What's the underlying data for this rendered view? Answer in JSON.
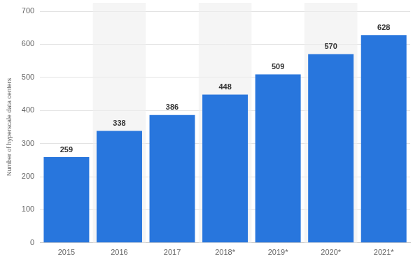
{
  "chart_data": {
    "type": "bar",
    "ylabel": "Number of hyperscale data centers",
    "categories": [
      "2015",
      "2016",
      "2017",
      "2018*",
      "2019*",
      "2020*",
      "2021*"
    ],
    "values": [
      259,
      338,
      386,
      448,
      509,
      570,
      628
    ],
    "color": "#2876dd",
    "ylim": [
      0,
      700
    ],
    "yticks": [
      0,
      100,
      200,
      300,
      400,
      500,
      600,
      700
    ],
    "grid": true,
    "data_labels": true
  }
}
